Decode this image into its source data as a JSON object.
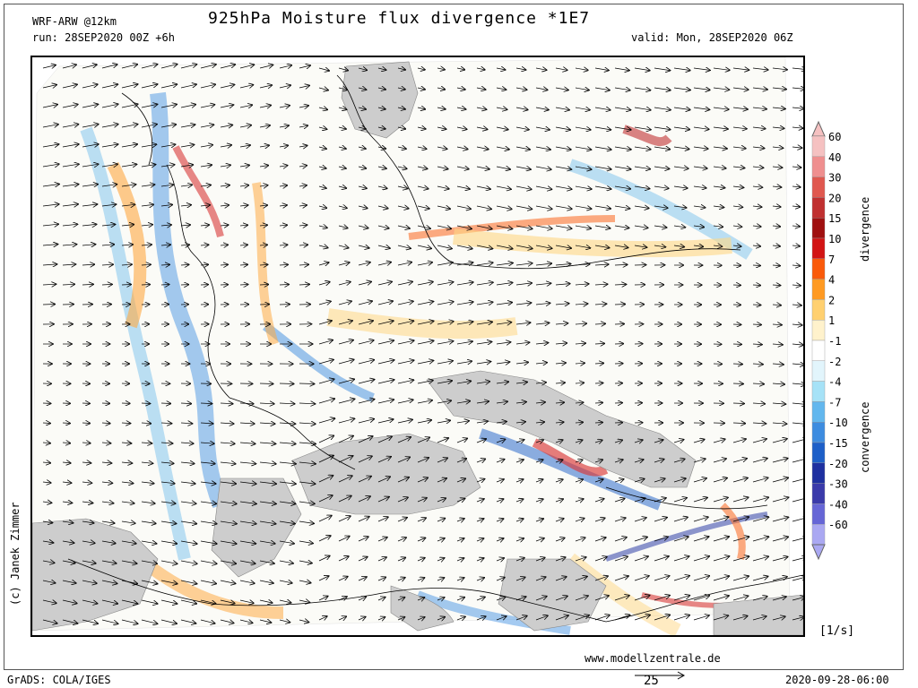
{
  "header": {
    "model": "WRF-ARW @12km",
    "run": "run: 28SEP2020 00Z +6h",
    "title": "925hPa Moisture flux divergence *1E7",
    "valid": "valid: Mon, 28SEP2020 06Z"
  },
  "legend": {
    "unit": "[1/s]",
    "label_top": "divergence",
    "label_bottom": "convergence",
    "ticks": [
      "60",
      "40",
      "30",
      "20",
      "15",
      "10",
      "7",
      "4",
      "2",
      "1",
      "-1",
      "-2",
      "-4",
      "-7",
      "-10",
      "-15",
      "-20",
      "-30",
      "-40",
      "-60"
    ],
    "colors": [
      "#f5c1c1",
      "#ef8f8f",
      "#e0584f",
      "#c03030",
      "#a01010",
      "#d21414",
      "#fa5a0a",
      "#ff9a22",
      "#ffd070",
      "#fff2cc",
      "#ffffff",
      "#e2f5fc",
      "#a6e2f7",
      "#62b7ee",
      "#3d8ce0",
      "#1d5fc8",
      "#1e30a0",
      "#3a3aaa",
      "#6666d6",
      "#aaa8f2"
    ]
  },
  "footer": {
    "website": "www.modellzentrale.de",
    "software": "GrADS: COLA/IGES",
    "vector_ref": "25",
    "timestamp": "2020-09-28-06:00",
    "credit": "(c) Janek Zimmer"
  },
  "map": {
    "land_gray": "#cdcdcd",
    "divergence_color": "#fa5a0a",
    "convergence_color": "#3d8ce0"
  }
}
